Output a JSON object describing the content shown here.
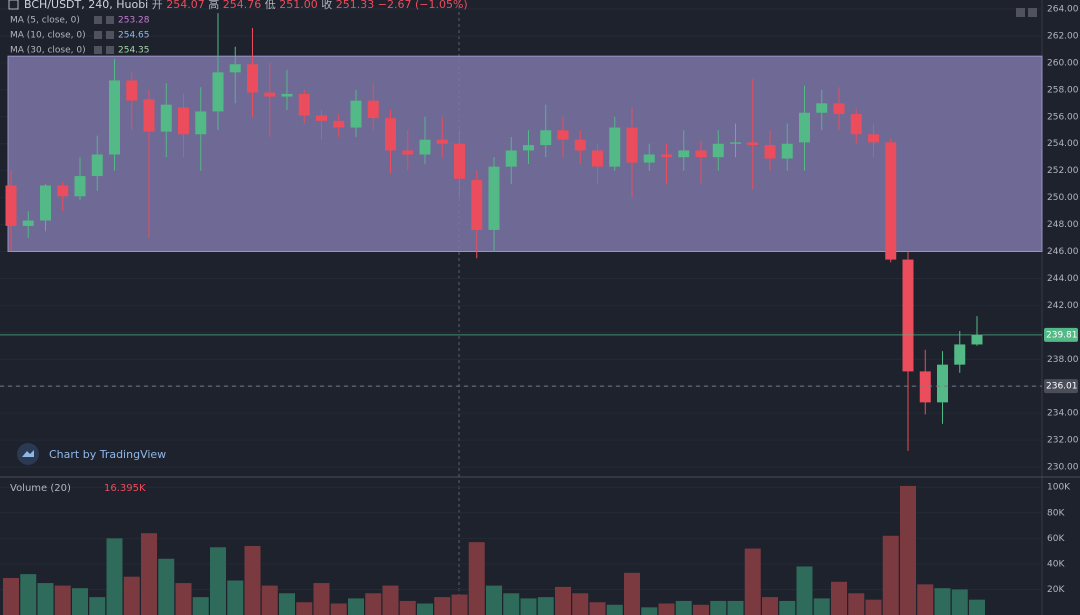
{
  "chart_data": {
    "type": "candlestick",
    "symbol": "BCH/USDT, 240, Huobi",
    "header": [
      {
        "label": "开",
        "value": "254.07"
      },
      {
        "label": "高",
        "value": "254.76"
      },
      {
        "label": "低",
        "value": "251.00"
      },
      {
        "label": "收",
        "value": "251.33"
      }
    ],
    "change": "−2.67 (−1.05%)",
    "indicators": [
      {
        "name": "MA (5, close, 0)",
        "value": "253.28",
        "color": "#c77dd8"
      },
      {
        "name": "MA (10, close, 0)",
        "value": "254.65",
        "color": "#8fb7e8"
      },
      {
        "name": "MA (30, close, 0)",
        "value": "254.35",
        "color": "#a5d6a7"
      }
    ],
    "open": [
      250.9,
      247.9,
      248.3,
      250.9,
      250.1,
      251.6,
      253.2,
      258.7,
      257.3,
      254.9,
      256.7,
      254.7,
      256.4,
      259.3,
      259.9,
      257.8,
      257.5,
      257.7,
      256.1,
      255.7,
      255.2,
      257.2,
      255.9,
      253.5,
      253.2,
      254.3,
      254.0,
      251.3,
      247.6,
      252.3,
      253.5,
      253.9,
      255.0,
      254.3,
      253.5,
      252.3,
      255.2,
      252.6,
      253.2,
      253.0,
      253.5,
      253.0,
      254.0,
      254.1,
      253.9,
      252.9,
      254.1,
      256.3,
      257.0,
      256.2,
      254.7,
      254.1,
      245.4,
      237.1,
      234.8,
      237.6,
      239.1
    ],
    "high": [
      252.0,
      249.0,
      251.0,
      251.2,
      253.0,
      254.6,
      260.3,
      259.3,
      258.0,
      258.5,
      257.7,
      258.2,
      263.7,
      261.2,
      262.6,
      260.0,
      259.5,
      258.0,
      256.5,
      256.2,
      258.0,
      258.5,
      256.5,
      255.0,
      256.0,
      256.0,
      255.0,
      252.0,
      253.0,
      254.5,
      255.0,
      256.9,
      256.0,
      255.0,
      254.0,
      256.0,
      256.7,
      254.0,
      254.0,
      255.0,
      254.2,
      255.0,
      255.5,
      258.8,
      255.0,
      255.5,
      258.3,
      258.0,
      258.2,
      256.6,
      255.5,
      254.4,
      246.0,
      238.7,
      238.6,
      240.1,
      241.2
    ],
    "low": [
      246.0,
      247.0,
      247.5,
      249.0,
      249.8,
      250.5,
      252.0,
      255.0,
      247.0,
      253.0,
      253.0,
      252.0,
      255.0,
      257.0,
      256.0,
      254.5,
      256.5,
      255.5,
      254.3,
      254.5,
      254.5,
      255.0,
      251.8,
      252.0,
      252.5,
      253.0,
      250.0,
      245.5,
      246.0,
      251.0,
      252.5,
      253.0,
      253.0,
      252.5,
      251.0,
      252.0,
      250.0,
      252.0,
      251.0,
      252.0,
      251.0,
      252.0,
      253.0,
      250.6,
      252.0,
      252.0,
      252.0,
      255.0,
      255.0,
      254.0,
      253.0,
      245.2,
      231.2,
      233.9,
      233.2,
      237.0,
      239.0
    ],
    "close": [
      247.9,
      248.3,
      250.9,
      250.1,
      251.6,
      253.2,
      258.7,
      257.2,
      254.9,
      256.9,
      254.7,
      256.4,
      259.3,
      259.9,
      257.8,
      257.5,
      257.7,
      256.1,
      255.7,
      255.2,
      257.2,
      255.9,
      253.5,
      253.2,
      254.3,
      254.0,
      251.4,
      247.6,
      252.3,
      253.5,
      253.9,
      255.0,
      254.3,
      253.5,
      252.3,
      255.2,
      252.6,
      253.2,
      253.0,
      253.5,
      253.0,
      254.0,
      254.1,
      253.9,
      252.9,
      254.0,
      256.3,
      257.0,
      256.2,
      254.7,
      254.1,
      245.4,
      237.1,
      234.8,
      237.6,
      239.1,
      239.8
    ],
    "up_color": "#53b987",
    "down_color": "#eb4d5c",
    "ylim": [
      229.26,
      264.67
    ],
    "yticks": [
      {
        "value": 230,
        "label": "230.00"
      },
      {
        "value": 232,
        "label": "232.00"
      },
      {
        "value": 234,
        "label": "234.00"
      },
      {
        "value": 236,
        "label": "236.00"
      },
      {
        "value": 238,
        "label": "238.00"
      },
      {
        "value": 240,
        "label": "240.00"
      },
      {
        "value": 242,
        "label": "242.00"
      },
      {
        "value": 244,
        "label": "244.00"
      },
      {
        "value": 246,
        "label": "246.00"
      },
      {
        "value": 248,
        "label": "248.00"
      },
      {
        "value": 250,
        "label": "250.00"
      },
      {
        "value": 252,
        "label": "252.00"
      },
      {
        "value": 254,
        "label": "254.00"
      },
      {
        "value": 256,
        "label": "256.00"
      },
      {
        "value": 258,
        "label": "258.00"
      },
      {
        "value": 260,
        "label": "260.00"
      },
      {
        "value": 262,
        "label": "262.00"
      },
      {
        "value": 264,
        "label": "264.00"
      }
    ],
    "last_price": {
      "value": 239.81,
      "label": "239.81"
    },
    "marker_price": {
      "value": 236.01,
      "label": "236.01"
    },
    "rectangle": {
      "top": 260.5,
      "bottom": 246,
      "color": "#7d76a8"
    },
    "volume": {
      "name": "Volume (20)",
      "value_label": "16.395K",
      "values": [
        29000,
        32000,
        25000,
        23000,
        21000,
        14000,
        60000,
        30000,
        64000,
        44000,
        25000,
        14000,
        53000,
        27000,
        54000,
        23000,
        17000,
        10000,
        25000,
        9000,
        13000,
        17000,
        23000,
        11000,
        9000,
        14000,
        16000,
        57000,
        23000,
        17000,
        13000,
        14000,
        22000,
        17000,
        10000,
        8000,
        33000,
        6000,
        9000,
        11000,
        8000,
        11000,
        11000,
        52000,
        14000,
        11000,
        38000,
        13000,
        26000,
        17000,
        12000,
        62000,
        101000,
        24000,
        21000,
        20000,
        12000
      ],
      "ylim": [
        0,
        108000
      ],
      "yticks": [
        {
          "value": 20000,
          "label": "20K"
        },
        {
          "value": 40000,
          "label": "40K"
        },
        {
          "value": 60000,
          "label": "60K"
        },
        {
          "value": 80000,
          "label": "80K"
        },
        {
          "value": 100000,
          "label": "100K"
        }
      ],
      "up_color": "#2f6b5b",
      "down_color": "#7b3a40"
    },
    "branding": "Chart by TradingView"
  }
}
